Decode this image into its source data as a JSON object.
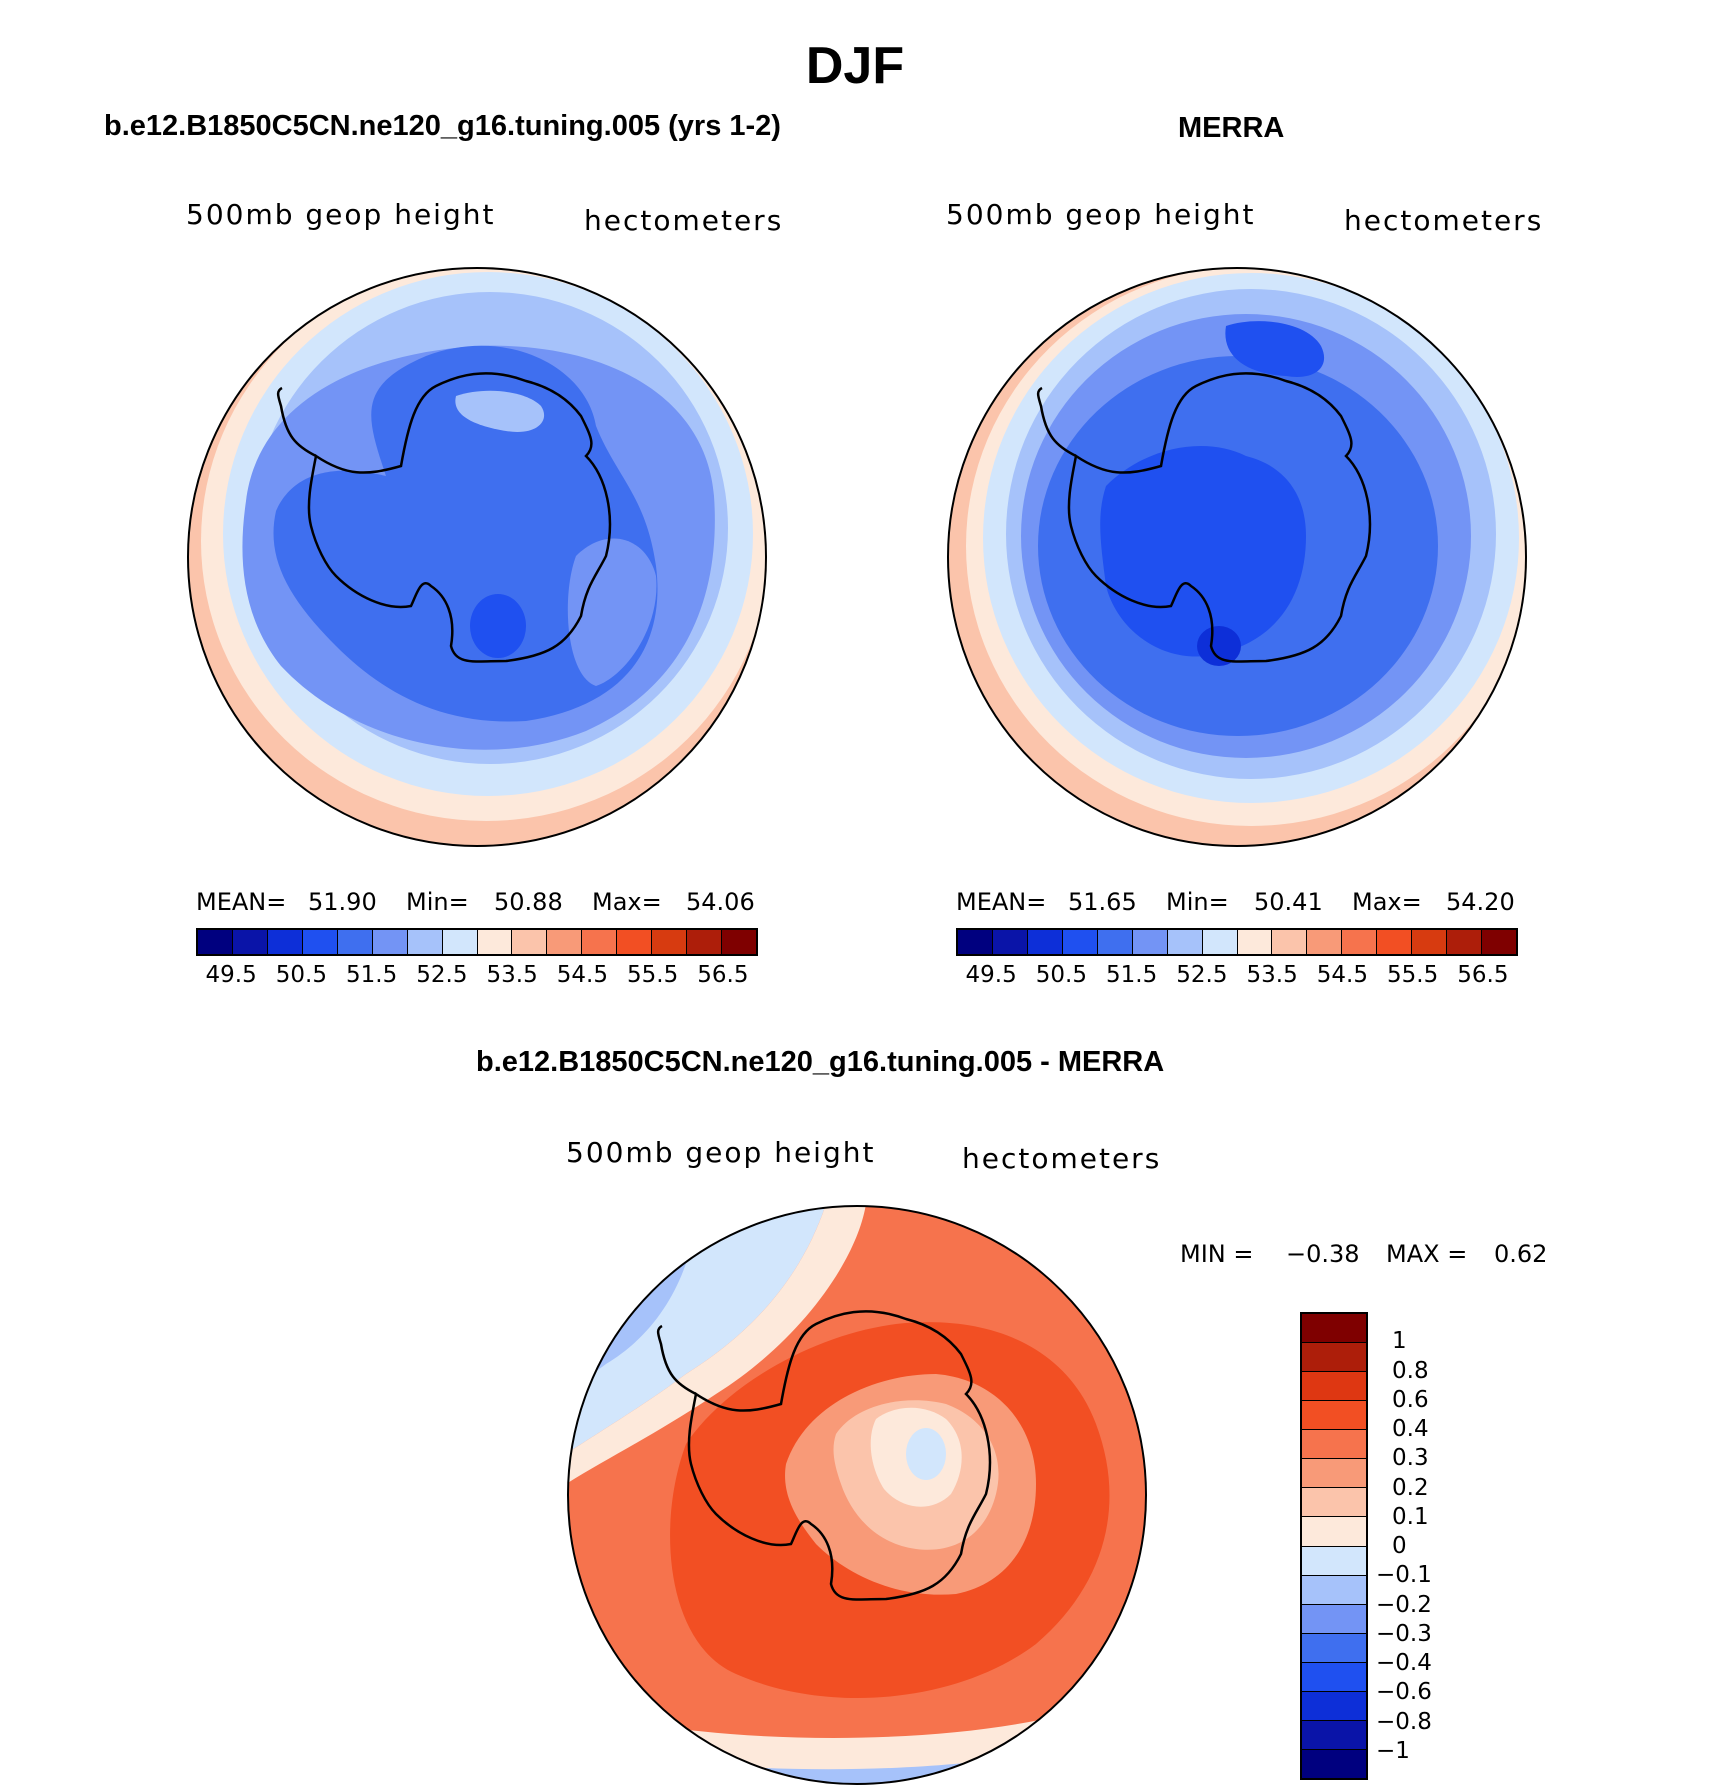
{
  "figure_title": "DJF",
  "panels": {
    "model": {
      "title": "b.e12.B1850C5CN.ne120_g16.tuning.005 (yrs 1-2)",
      "variable": "500mb geop height",
      "units": "hectometers",
      "stats": {
        "mean_label": "MEAN=",
        "mean": "51.90",
        "min_label": "Min=",
        "min": "50.88",
        "max_label": "Max=",
        "max": "54.06"
      }
    },
    "obs": {
      "title": "MERRA",
      "variable": "500mb geop height",
      "units": "hectometers",
      "stats": {
        "mean_label": "MEAN=",
        "mean": "51.65",
        "min_label": "Min=",
        "min": "50.41",
        "max_label": "Max=",
        "max": "54.20"
      }
    },
    "diff": {
      "title": "b.e12.B1850C5CN.ne120_g16.tuning.005 - MERRA",
      "variable": "500mb geop height",
      "units": "hectometers",
      "stats": {
        "min_label": "MIN =",
        "min": "−0.38",
        "max_label": "MAX =",
        "max": "0.62"
      }
    }
  },
  "colorbar_main": {
    "colors": [
      "#00007f",
      "#0a14a8",
      "#0d2fd8",
      "#1f50f0",
      "#3f6fef",
      "#7394f5",
      "#a6c2fa",
      "#d2e6fc",
      "#fde9db",
      "#fbc4ab",
      "#f89a78",
      "#f6734d",
      "#f24f23",
      "#d73b10",
      "#ad1e0a",
      "#7f0000"
    ],
    "tick_labels": [
      "49.5",
      "50.5",
      "51.5",
      "52.5",
      "53.5",
      "54.5",
      "55.5",
      "56.5"
    ]
  },
  "colorbar_diff": {
    "colors": [
      "#7f0000",
      "#ad1e0a",
      "#de3712",
      "#f24f23",
      "#f6734d",
      "#f89a78",
      "#fbc4ab",
      "#fde9db",
      "#d2e6fc",
      "#a6c2fa",
      "#7394f5",
      "#3f6fef",
      "#1f50f0",
      "#0d2fd8",
      "#0a14a8",
      "#00007f"
    ],
    "tick_labels": [
      "1",
      "0.8",
      "0.6",
      "0.4",
      "0.3",
      "0.2",
      "0.1",
      "0",
      "−0.1",
      "−0.2",
      "−0.3",
      "−0.4",
      "−0.6",
      "−0.8",
      "−1"
    ]
  },
  "map_colors": {
    "level1": "#3f6fef",
    "level2": "#7394f5",
    "level3": "#a6c2fa",
    "level4": "#d2e6fc",
    "level5": "#fde9db",
    "level6": "#fbc4ab",
    "dark": "#1f50f0",
    "diff_red": "#f24f23",
    "diff_orange": "#f6734d",
    "diff_salmon": "#f89a78",
    "diff_peach": "#fbc4ab",
    "diff_cream": "#fde9db",
    "diff_lightblue": "#d2e6fc",
    "diff_blue": "#a6c2fa",
    "diff_midblue": "#7394f5"
  }
}
